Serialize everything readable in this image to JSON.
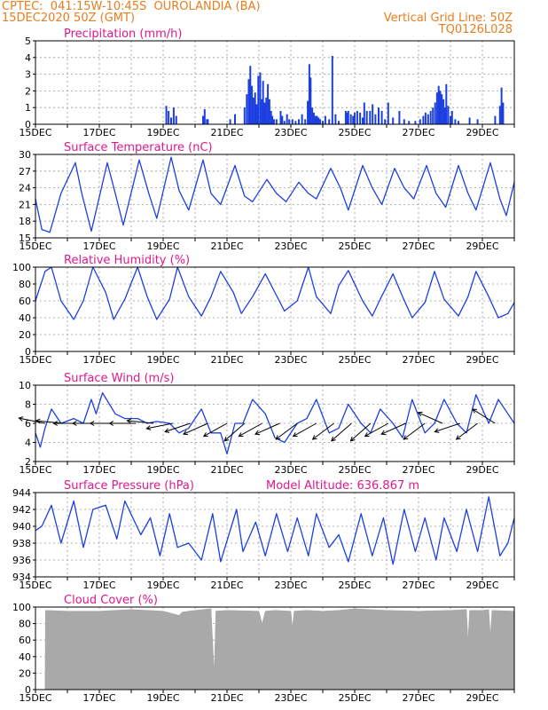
{
  "header": {
    "line1_left": "CPTEC:  041:15W-10:45S  OUROLANDIA (BA)",
    "line2_left": "15DEC2020 50Z (GMT)",
    "line1_right": "Vertical Grid Line: 50Z",
    "line2_right": "TQ0126L028",
    "color": "#e87d1e"
  },
  "colors": {
    "title": "#e0188c",
    "series": "#1c3fe0",
    "text": "#e87d1e",
    "grid": "#9a9a9a",
    "cloud": "#a9a9a9",
    "axis": "#000000",
    "wind": "#000000"
  },
  "chart_data": [
    {
      "type": "bar",
      "title": "Precipitation (mm/h)",
      "ylim": [
        0,
        5
      ],
      "yticks": [
        "0",
        "1",
        "2",
        "3",
        "4",
        "5"
      ],
      "xticks": [
        "15DEC",
        "17DEC",
        "19DEC",
        "21DEC",
        "23DEC",
        "25DEC",
        "27DEC",
        "29DEC"
      ],
      "xrange": [
        0,
        15
      ],
      "bar_width": 0.045,
      "x": [
        4.1,
        4.17,
        4.25,
        4.33,
        4.41,
        5.25,
        5.3,
        5.37,
        5.4,
        6.1,
        6.25,
        6.55,
        6.62,
        6.68,
        6.73,
        6.78,
        6.83,
        6.88,
        6.93,
        6.98,
        7.04,
        7.09,
        7.13,
        7.18,
        7.23,
        7.28,
        7.33,
        7.38,
        7.42,
        7.47,
        7.55,
        7.68,
        7.73,
        7.8,
        7.88,
        7.95,
        8.05,
        8.15,
        8.25,
        8.35,
        8.45,
        8.53,
        8.58,
        8.62,
        8.67,
        8.72,
        8.77,
        8.82,
        8.87,
        8.92,
        9.0,
        9.08,
        9.2,
        9.3,
        9.4,
        9.5,
        9.72,
        9.77,
        9.8,
        9.88,
        9.95,
        10.0,
        10.08,
        10.17,
        10.25,
        10.3,
        10.38,
        10.48,
        10.56,
        10.65,
        10.75,
        10.85,
        10.95,
        11.05,
        11.2,
        11.4,
        11.55,
        11.7,
        11.9,
        12.05,
        12.15,
        12.22,
        12.3,
        12.38,
        12.45,
        12.52,
        12.58,
        12.63,
        12.68,
        12.73,
        12.78,
        12.82,
        12.87,
        12.93,
        13.0,
        13.05,
        13.15,
        13.25,
        13.6,
        13.85,
        14.4,
        14.55,
        14.6,
        14.65
      ],
      "values": [
        1.1,
        0.8,
        0.4,
        1.0,
        0.5,
        0.5,
        0.9,
        0.3,
        0.3,
        0.3,
        0.6,
        1.0,
        1.8,
        2.7,
        3.5,
        2.3,
        1.6,
        1.9,
        1.2,
        2.9,
        3.1,
        1.5,
        2.6,
        1.3,
        1.6,
        2.4,
        1.5,
        0.8,
        0.5,
        0.3,
        0.3,
        0.8,
        0.5,
        0.2,
        0.6,
        0.3,
        0.3,
        0.2,
        0.3,
        0.6,
        0.3,
        1.4,
        3.6,
        2.8,
        1.0,
        0.7,
        0.5,
        0.5,
        0.4,
        0.3,
        0.2,
        0.5,
        0.3,
        4.1,
        0.6,
        0.2,
        0.8,
        0.7,
        0.8,
        0.6,
        0.5,
        0.7,
        0.8,
        0.7,
        0.4,
        1.3,
        0.8,
        0.8,
        1.2,
        0.6,
        1.0,
        0.8,
        0.3,
        1.3,
        0.4,
        0.8,
        0.3,
        0.2,
        0.2,
        0.3,
        0.5,
        0.7,
        0.6,
        0.8,
        1.0,
        1.3,
        1.9,
        2.3,
        2.0,
        1.8,
        1.5,
        1.0,
        2.4,
        1.1,
        0.5,
        0.8,
        0.3,
        0.2,
        0.4,
        0.3,
        0.5,
        1.1,
        2.2,
        1.3
      ]
    },
    {
      "type": "line",
      "title": "Surface Temperature (nC)",
      "ylim": [
        15,
        30
      ],
      "yticks": [
        "15",
        "18",
        "21",
        "24",
        "27",
        "30"
      ],
      "xticks": [
        "15DEC",
        "17DEC",
        "19DEC",
        "21DEC",
        "23DEC",
        "25DEC",
        "27DEC",
        "29DEC"
      ],
      "xrange": [
        0,
        15
      ],
      "x": [
        0,
        0.2,
        0.45,
        0.8,
        1.25,
        1.45,
        1.75,
        2.25,
        2.5,
        2.75,
        3.25,
        3.55,
        3.8,
        4.25,
        4.5,
        4.8,
        5.25,
        5.5,
        5.8,
        6.25,
        6.55,
        6.8,
        7.25,
        7.55,
        7.85,
        8.25,
        8.55,
        8.8,
        9.25,
        9.55,
        9.8,
        10.25,
        10.55,
        10.85,
        11.25,
        11.55,
        11.85,
        12.25,
        12.55,
        12.85,
        13.25,
        13.55,
        13.8,
        14.25,
        14.55,
        14.75,
        15
      ],
      "values": [
        22,
        16.5,
        16,
        23,
        28.5,
        23,
        16.2,
        28.5,
        23,
        17.3,
        29,
        23,
        18.5,
        29.5,
        23.5,
        20,
        29,
        23,
        21,
        28,
        22.5,
        21.5,
        25.5,
        23,
        21.5,
        25,
        23,
        22,
        27.5,
        24,
        20,
        28,
        24,
        21,
        27.5,
        24,
        22,
        28,
        23,
        20.5,
        28,
        23,
        20,
        28.5,
        22,
        19,
        25
      ]
    },
    {
      "type": "line",
      "title": "Relative Humidity (%)",
      "ylim": [
        0,
        100
      ],
      "yticks": [
        "0",
        "20",
        "40",
        "60",
        "80",
        "100"
      ],
      "xticks": [
        "15DEC",
        "17DEC",
        "19DEC",
        "21DEC",
        "23DEC",
        "25DEC",
        "27DEC",
        "29DEC"
      ],
      "xrange": [
        0,
        15
      ],
      "x": [
        0,
        0.3,
        0.5,
        0.8,
        1.2,
        1.5,
        1.8,
        2.2,
        2.45,
        2.8,
        3.2,
        3.5,
        3.8,
        4.2,
        4.45,
        4.8,
        5.2,
        5.5,
        5.8,
        6.2,
        6.45,
        6.8,
        7.2,
        7.5,
        7.8,
        8.2,
        8.55,
        8.8,
        9.25,
        9.5,
        9.8,
        10.25,
        10.55,
        10.8,
        11.2,
        11.5,
        11.8,
        12.2,
        12.5,
        12.8,
        13.25,
        13.55,
        13.8,
        14.2,
        14.5,
        14.8,
        15
      ],
      "values": [
        60,
        95,
        100,
        60,
        38,
        60,
        100,
        70,
        38,
        62,
        100,
        65,
        38,
        62,
        100,
        65,
        42,
        65,
        95,
        70,
        45,
        65,
        92,
        70,
        48,
        60,
        100,
        65,
        45,
        78,
        96,
        60,
        42,
        62,
        92,
        65,
        40,
        58,
        95,
        62,
        42,
        65,
        95,
        65,
        40,
        45,
        58
      ]
    },
    {
      "type": "line",
      "title": "Surface Wind (m/s)",
      "ylim": [
        2,
        10
      ],
      "yticks": [
        "2",
        "4",
        "6",
        "8",
        "10"
      ],
      "xticks": [
        "15DEC",
        "17DEC",
        "19DEC",
        "21DEC",
        "23DEC",
        "25DEC",
        "27DEC",
        "29DEC"
      ],
      "xrange": [
        0,
        15
      ],
      "x": [
        0,
        0.15,
        0.3,
        0.5,
        0.8,
        1.2,
        1.5,
        1.75,
        1.9,
        2.1,
        2.5,
        2.8,
        3.2,
        3.5,
        3.8,
        4.2,
        4.5,
        4.8,
        5.2,
        5.5,
        5.8,
        6.0,
        6.25,
        6.5,
        6.8,
        7.2,
        7.5,
        7.8,
        8.2,
        8.5,
        8.8,
        9.2,
        9.5,
        9.8,
        10.2,
        10.5,
        10.8,
        11.2,
        11.5,
        11.8,
        12.2,
        12.5,
        12.8,
        13.2,
        13.5,
        13.8,
        14.2,
        14.5,
        14.8,
        15
      ],
      "values": [
        5,
        3.5,
        5.5,
        7.5,
        6,
        6.5,
        6,
        8.5,
        7,
        9.2,
        7,
        6.5,
        6.5,
        6,
        6.2,
        6,
        5,
        5.5,
        7.5,
        5,
        5,
        2.8,
        6,
        6,
        8.5,
        7,
        4.5,
        4,
        6,
        6.5,
        8.5,
        5,
        5.5,
        8,
        6,
        5,
        7.5,
        6,
        4.5,
        8.5,
        5,
        6,
        8.5,
        6,
        5,
        9,
        6,
        8.5,
        7,
        6
      ]
    },
    {
      "type": "line",
      "title": "Surface Pressure (hPa)",
      "annotation": "Model Altitude: 636.867 m",
      "ylim": [
        934,
        944
      ],
      "yticks": [
        "934",
        "936",
        "938",
        "940",
        "942",
        "944"
      ],
      "xticks": [
        "15DEC",
        "17DEC",
        "19DEC",
        "21DEC",
        "23DEC",
        "25DEC",
        "27DEC",
        "29DEC"
      ],
      "xrange": [
        0,
        15
      ],
      "x": [
        0,
        0.2,
        0.5,
        0.8,
        1.2,
        1.5,
        1.8,
        2.2,
        2.55,
        2.8,
        3.3,
        3.6,
        3.9,
        4.2,
        4.45,
        4.8,
        5.2,
        5.55,
        5.8,
        6.3,
        6.5,
        6.9,
        7.2,
        7.55,
        7.9,
        8.2,
        8.55,
        8.8,
        9.2,
        9.5,
        9.8,
        10.2,
        10.55,
        10.9,
        11.2,
        11.55,
        11.9,
        12.2,
        12.55,
        12.8,
        13.2,
        13.5,
        13.85,
        14.2,
        14.55,
        14.8,
        15
      ],
      "values": [
        939.5,
        940,
        942.5,
        938,
        943,
        937.5,
        942,
        942.5,
        938.5,
        943,
        939,
        941,
        936.5,
        941.5,
        937.5,
        938,
        936,
        941.5,
        935.8,
        942,
        937,
        940.5,
        936.5,
        941.5,
        937,
        941,
        936.5,
        941.5,
        937.5,
        939,
        935.8,
        941.5,
        936.5,
        941,
        935.5,
        942,
        937,
        941,
        936,
        941,
        937,
        942,
        937,
        943.5,
        936.5,
        938,
        941
      ]
    },
    {
      "type": "area",
      "title": "Cloud Cover (%)",
      "ylim": [
        0,
        100
      ],
      "yticks": [
        "0",
        "20",
        "40",
        "60",
        "80",
        "100"
      ],
      "xticks": [
        "15DEC",
        "17DEC",
        "19DEC",
        "21DEC",
        "23DEC",
        "25DEC",
        "27DEC",
        "29DEC"
      ],
      "xrange": [
        0,
        15
      ],
      "x": [
        0,
        0.3,
        0.31,
        1,
        2,
        3,
        4,
        4.5,
        4.6,
        5,
        5.5,
        5.6,
        5.65,
        6,
        7,
        7.1,
        7.2,
        7.5,
        8,
        8.05,
        8.1,
        8.5,
        9,
        9.5,
        10,
        11,
        12,
        13,
        13.5,
        13.55,
        13.6,
        14,
        14.2,
        14.25,
        14.3,
        15
      ],
      "values": [
        0,
        0,
        96,
        95,
        95,
        97,
        95,
        90,
        94,
        96,
        98,
        20,
        95,
        96,
        95,
        80,
        95,
        96,
        95,
        75,
        95,
        96,
        95,
        96,
        98,
        96,
        95,
        96,
        97,
        60,
        96,
        96,
        97,
        65,
        96,
        95
      ]
    }
  ],
  "wind_vectors": [
    {
      "t": 0.3,
      "u": -1.0,
      "v": 0.2
    },
    {
      "t": 0.85,
      "u": -1.0,
      "v": 0.1
    },
    {
      "t": 1.4,
      "u": -1.0,
      "v": 0.0
    },
    {
      "t": 2.0,
      "u": -0.9,
      "v": 0.0
    },
    {
      "t": 2.55,
      "u": -1.0,
      "v": 0.0
    },
    {
      "t": 3.15,
      "u": -0.9,
      "v": 0.0
    },
    {
      "t": 3.7,
      "u": -1.0,
      "v": 0.1
    },
    {
      "t": 4.3,
      "u": -1.0,
      "v": -0.2
    },
    {
      "t": 4.85,
      "u": -0.9,
      "v": -0.3
    },
    {
      "t": 5.4,
      "u": -0.9,
      "v": -0.4
    },
    {
      "t": 6.0,
      "u": -0.9,
      "v": -0.5
    },
    {
      "t": 6.55,
      "u": -0.8,
      "v": -0.7
    },
    {
      "t": 7.1,
      "u": -0.9,
      "v": -0.5
    },
    {
      "t": 7.65,
      "u": -0.9,
      "v": -0.4
    },
    {
      "t": 8.2,
      "u": -0.8,
      "v": -0.6
    },
    {
      "t": 8.8,
      "u": -0.9,
      "v": -0.5
    },
    {
      "t": 9.35,
      "u": -0.8,
      "v": -0.6
    },
    {
      "t": 9.9,
      "u": -0.8,
      "v": -0.7
    },
    {
      "t": 10.5,
      "u": -0.8,
      "v": -0.7
    },
    {
      "t": 11.05,
      "u": -0.9,
      "v": -0.5
    },
    {
      "t": 11.6,
      "u": -0.9,
      "v": -0.4
    },
    {
      "t": 12.2,
      "u": -0.8,
      "v": -0.6
    },
    {
      "t": 12.75,
      "u": -0.9,
      "v": 0.4
    },
    {
      "t": 13.3,
      "u": -0.9,
      "v": -0.3
    },
    {
      "t": 13.85,
      "u": -0.8,
      "v": -0.6
    },
    {
      "t": 14.4,
      "u": -0.8,
      "v": 0.5
    }
  ]
}
